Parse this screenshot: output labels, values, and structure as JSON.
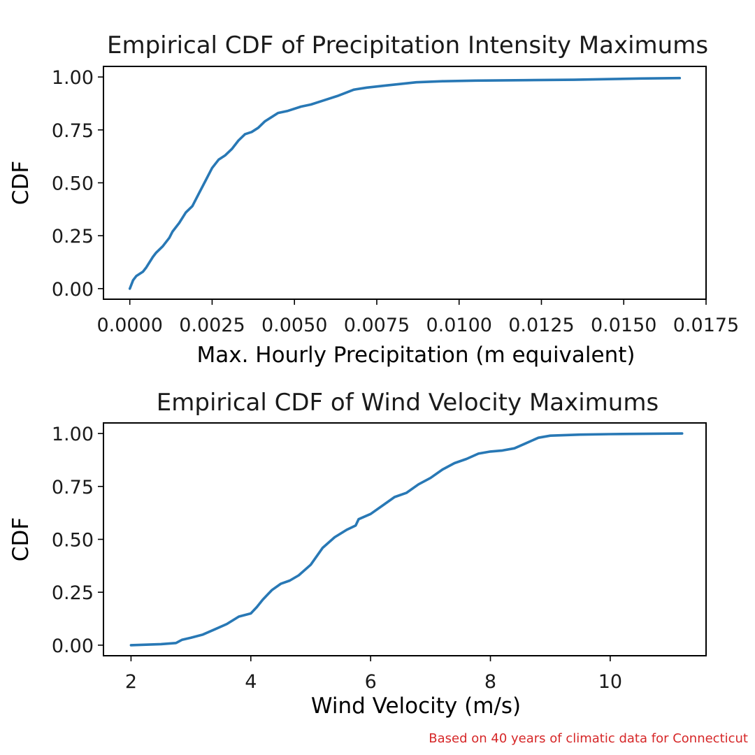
{
  "colors": {
    "series": "#2878b5",
    "footnote": "#d62728",
    "axis": "#000000"
  },
  "footnote": "Based on 40 years of climatic data for Connecticut",
  "chart_data": [
    {
      "type": "line",
      "title": "Empirical CDF of Precipitation Intensity Maximums",
      "xlabel": "Max. Hourly Precipitation (m equivalent)",
      "ylabel": "CDF",
      "xlim": [
        -0.0008,
        0.0175
      ],
      "ylim": [
        -0.05,
        1.05
      ],
      "xticks": [
        0.0,
        0.0025,
        0.005,
        0.0075,
        0.01,
        0.0125,
        0.015,
        0.0175
      ],
      "xtick_labels": [
        "0.0000",
        "0.0025",
        "0.0050",
        "0.0075",
        "0.0100",
        "0.0125",
        "0.0150",
        "0.0175"
      ],
      "yticks": [
        0.0,
        0.25,
        0.5,
        0.75,
        1.0
      ],
      "ytick_labels": [
        "0.00",
        "0.25",
        "0.50",
        "0.75",
        "1.00"
      ],
      "series": [
        {
          "name": "ECDF",
          "x": [
            0.0,
            0.0001,
            0.0002,
            0.0004,
            0.0005,
            0.0007,
            0.0008,
            0.001,
            0.0012,
            0.0013,
            0.0015,
            0.0017,
            0.0019,
            0.0021,
            0.0023,
            0.0025,
            0.0027,
            0.0029,
            0.0031,
            0.0033,
            0.0035,
            0.0037,
            0.0039,
            0.0041,
            0.0043,
            0.0045,
            0.0048,
            0.0052,
            0.0055,
            0.0059,
            0.0063,
            0.0068,
            0.0072,
            0.0078,
            0.0084,
            0.0087,
            0.0095,
            0.0105,
            0.012,
            0.0135,
            0.0145,
            0.0155,
            0.0167
          ],
          "y": [
            0.0,
            0.04,
            0.06,
            0.08,
            0.1,
            0.15,
            0.17,
            0.2,
            0.24,
            0.27,
            0.31,
            0.36,
            0.39,
            0.45,
            0.51,
            0.57,
            0.61,
            0.63,
            0.66,
            0.7,
            0.73,
            0.74,
            0.76,
            0.79,
            0.81,
            0.83,
            0.84,
            0.86,
            0.87,
            0.89,
            0.91,
            0.94,
            0.95,
            0.96,
            0.97,
            0.975,
            0.98,
            0.983,
            0.985,
            0.987,
            0.99,
            0.993,
            0.995
          ]
        }
      ]
    },
    {
      "type": "line",
      "title": "Empirical CDF of Wind Velocity Maximums",
      "xlabel": "Wind Velocity (m/s)",
      "ylabel": "CDF",
      "xlim": [
        1.54,
        11.6
      ],
      "ylim": [
        -0.05,
        1.05
      ],
      "xticks": [
        2,
        4,
        6,
        8,
        10
      ],
      "xtick_labels": [
        "2",
        "4",
        "6",
        "8",
        "10"
      ],
      "yticks": [
        0.0,
        0.25,
        0.5,
        0.75,
        1.0
      ],
      "ytick_labels": [
        "0.00",
        "0.25",
        "0.50",
        "0.75",
        "1.00"
      ],
      "series": [
        {
          "name": "ECDF",
          "x": [
            2.0,
            2.5,
            2.75,
            2.85,
            3.0,
            3.2,
            3.4,
            3.6,
            3.8,
            4.0,
            4.1,
            4.2,
            4.35,
            4.5,
            4.65,
            4.8,
            5.0,
            5.2,
            5.4,
            5.6,
            5.75,
            5.8,
            6.0,
            6.2,
            6.4,
            6.6,
            6.8,
            7.0,
            7.2,
            7.4,
            7.6,
            7.8,
            8.0,
            8.2,
            8.4,
            8.6,
            8.8,
            9.0,
            9.5,
            10.0,
            11.2
          ],
          "y": [
            0.0,
            0.005,
            0.01,
            0.025,
            0.035,
            0.05,
            0.075,
            0.1,
            0.135,
            0.15,
            0.18,
            0.215,
            0.26,
            0.29,
            0.305,
            0.33,
            0.38,
            0.46,
            0.51,
            0.545,
            0.565,
            0.595,
            0.62,
            0.66,
            0.7,
            0.72,
            0.76,
            0.79,
            0.83,
            0.86,
            0.88,
            0.905,
            0.915,
            0.92,
            0.93,
            0.955,
            0.98,
            0.99,
            0.995,
            0.997,
            1.0
          ]
        }
      ]
    }
  ]
}
